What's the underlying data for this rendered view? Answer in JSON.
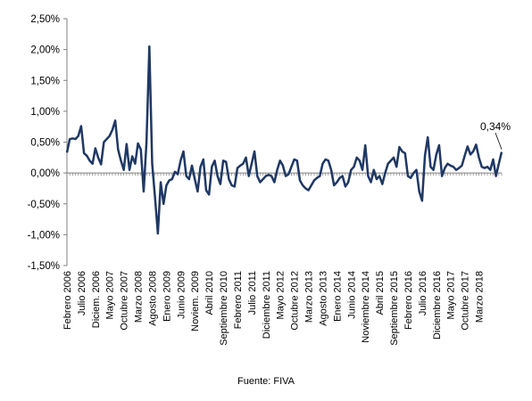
{
  "chart_data": {
    "type": "line",
    "ylim": [
      -1.5,
      2.5
    ],
    "ytick_values": [
      -1.5,
      -1.0,
      -0.5,
      0.0,
      0.5,
      1.0,
      1.5,
      2.0,
      2.5
    ],
    "ytick_labels": [
      "-1,50%",
      "-1,00%",
      "-0,50%",
      "0,00%",
      "0,50%",
      "1,00%",
      "1,50%",
      "2,00%",
      "2,50%"
    ],
    "x_start": "Febrero 2006",
    "xtick_labels": [
      "Febrero 2006",
      "Julio 2006",
      "Diciem. 2006",
      "Mayo 2007",
      "Octubre 2007",
      "Marzo 2008",
      "Agosto 2008",
      "Enero 2009",
      "Junio 2009",
      "Noviem. 2009",
      "Abril 2010",
      "Septiembre 2010",
      "Febrero 2011",
      "Julio 2011",
      "Diciembre 2011",
      "Mayo 2012",
      "Octubre 2012",
      "Marzo 2013",
      "Agosto 2013",
      "Enero 2014",
      "Junio 2014",
      "Noviembre 2014",
      "Abril 2015",
      "Septiembre 2015",
      "Febrero 2016",
      "Julio 2016",
      "Diciembre 2016",
      "Mayo 2017",
      "Octubre 2017",
      "Marzo 2018"
    ],
    "grid": false,
    "line_color": "#1f3864",
    "annotation": {
      "text": "0,34%"
    },
    "values": [
      0.33,
      0.55,
      0.56,
      0.55,
      0.6,
      0.76,
      0.32,
      0.28,
      0.2,
      0.15,
      0.4,
      0.25,
      0.14,
      0.5,
      0.55,
      0.6,
      0.7,
      0.85,
      0.38,
      0.2,
      0.05,
      0.47,
      0.05,
      0.27,
      0.15,
      0.48,
      0.38,
      -0.3,
      0.5,
      2.05,
      0.15,
      -0.4,
      -0.98,
      -0.15,
      -0.5,
      -0.2,
      -0.12,
      -0.1,
      0.02,
      -0.02,
      0.2,
      0.35,
      -0.05,
      -0.1,
      0.12,
      -0.1,
      -0.3,
      0.1,
      0.22,
      -0.28,
      -0.35,
      0.1,
      0.2,
      -0.05,
      -0.18,
      0.2,
      0.18,
      -0.1,
      -0.2,
      -0.22,
      0.08,
      0.12,
      0.15,
      0.25,
      -0.05,
      0.15,
      0.35,
      -0.05,
      -0.15,
      -0.1,
      -0.05,
      -0.03,
      -0.05,
      -0.15,
      0.05,
      0.2,
      0.12,
      -0.05,
      -0.02,
      0.1,
      0.22,
      0.2,
      -0.12,
      -0.2,
      -0.25,
      -0.28,
      -0.2,
      -0.12,
      -0.08,
      -0.05,
      0.15,
      0.22,
      0.2,
      0.05,
      -0.2,
      -0.15,
      -0.08,
      -0.05,
      -0.22,
      -0.15,
      0.05,
      0.1,
      0.25,
      0.2,
      0.05,
      0.45,
      -0.05,
      -0.15,
      0.05,
      -0.1,
      -0.05,
      -0.18,
      0.0,
      0.15,
      0.2,
      0.25,
      0.1,
      0.42,
      0.35,
      0.32,
      -0.05,
      -0.08,
      0.0,
      0.05,
      -0.3,
      -0.45,
      0.28,
      0.58,
      0.1,
      0.05,
      0.3,
      0.45,
      -0.05,
      0.08,
      0.15,
      0.12,
      0.1,
      0.05,
      0.08,
      0.12,
      0.28,
      0.43,
      0.3,
      0.35,
      0.46,
      0.25,
      0.1,
      0.08,
      0.1,
      0.05,
      0.22,
      -0.05,
      0.15,
      0.34
    ]
  },
  "source_text": "Fuente: FIVA"
}
